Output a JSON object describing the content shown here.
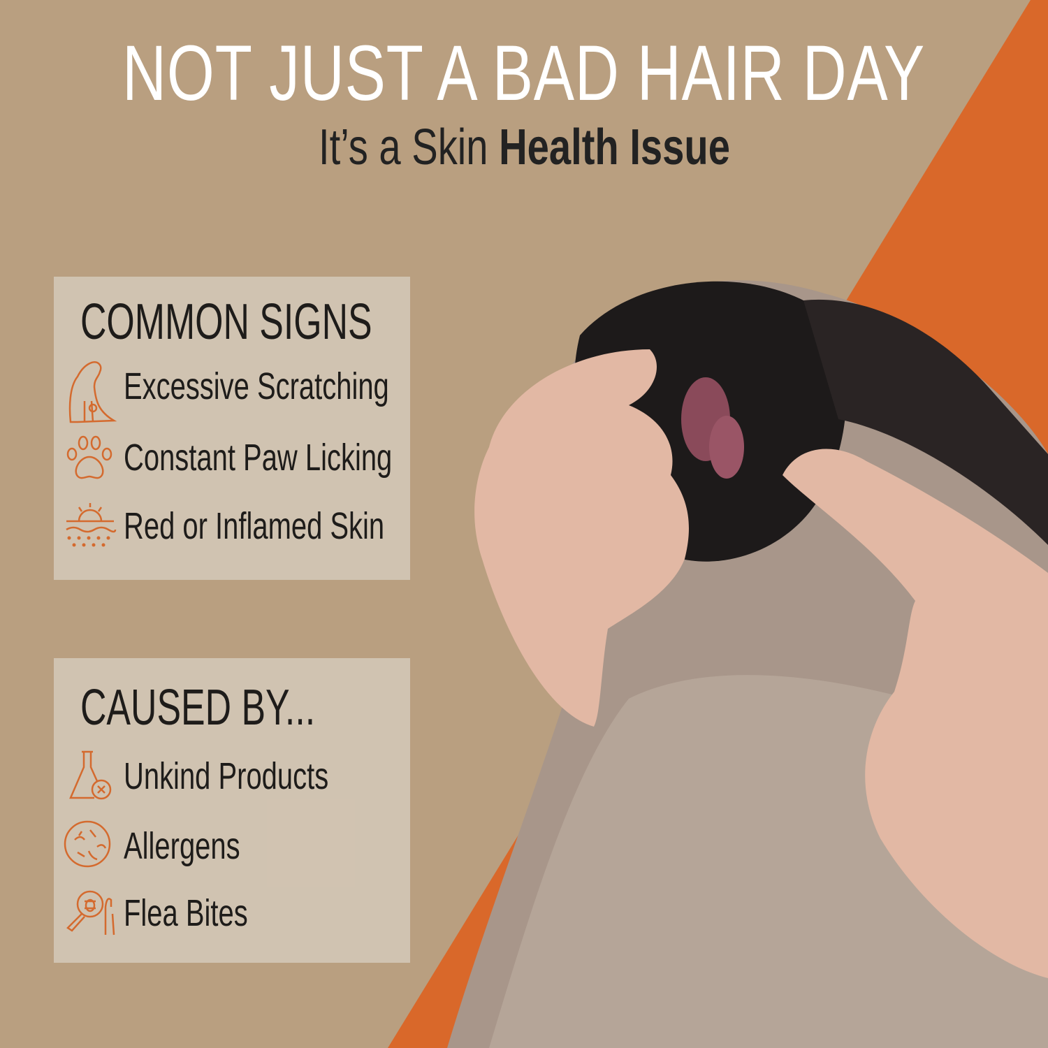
{
  "headline": "NOT JUST A BAD HAIR DAY",
  "subheadline": {
    "prefix": "It’s a Skin ",
    "bold": "Health Issue"
  },
  "common_signs": {
    "heading": "COMMON SIGNS",
    "items": [
      {
        "label": "Excessive Scratching",
        "icon": "scratching-dog-icon"
      },
      {
        "label": "Constant Paw Licking",
        "icon": "paw-print-icon"
      },
      {
        "label": "Red or Inflamed Skin",
        "icon": "inflamed-skin-icon"
      }
    ]
  },
  "caused_by": {
    "heading": "CAUSED BY...",
    "items": [
      {
        "label": "Unkind Products",
        "icon": "flask-x-icon"
      },
      {
        "label": "Allergens",
        "icon": "allergen-icon"
      },
      {
        "label": "Flea Bites",
        "icon": "flea-magnifier-icon"
      }
    ]
  },
  "colors": {
    "background": "#b99f80",
    "accent": "#d9682a",
    "icon": "#d46a2e",
    "panel": "#d6cbbc",
    "text": "#1e1c1a"
  }
}
